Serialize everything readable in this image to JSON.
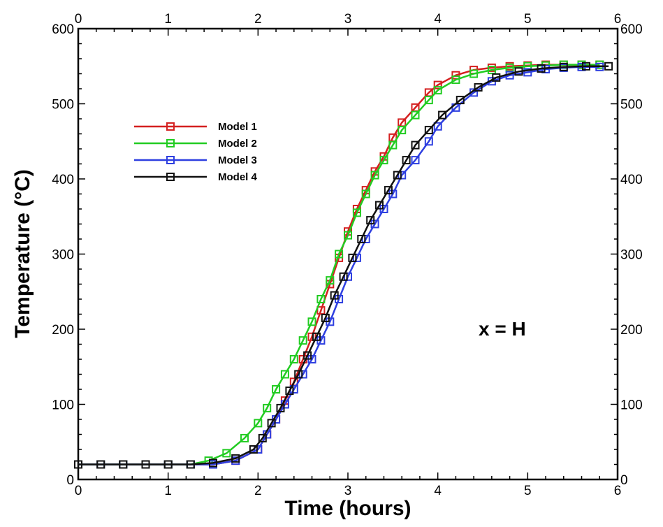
{
  "chart_data": {
    "type": "line",
    "title": "",
    "xlabel": "Time (hours)",
    "ylabel": "Temperature (°C)",
    "xlim": [
      0,
      6
    ],
    "ylim": [
      0,
      600
    ],
    "x_ticks": [
      "0",
      "1",
      "2",
      "3",
      "4",
      "5",
      "6"
    ],
    "y_ticks": [
      "0",
      "100",
      "200",
      "300",
      "400",
      "500",
      "600"
    ],
    "grid": false,
    "legend_position": "upper-left",
    "annotation": "x = H",
    "marker": "square-open",
    "series": [
      {
        "name": "Model 1",
        "color": "#d42020",
        "x": [
          0,
          0.25,
          0.5,
          0.75,
          1.0,
          1.25,
          1.5,
          1.75,
          2.0,
          2.1,
          2.2,
          2.3,
          2.4,
          2.5,
          2.6,
          2.7,
          2.8,
          2.9,
          3.0,
          3.1,
          3.2,
          3.3,
          3.4,
          3.5,
          3.6,
          3.75,
          3.9,
          4.0,
          4.2,
          4.4,
          4.6,
          4.8,
          5.0,
          5.2,
          5.4,
          5.6,
          5.8
        ],
        "y": [
          20,
          20,
          20,
          20,
          20,
          20,
          20,
          25,
          40,
          60,
          80,
          105,
          130,
          160,
          190,
          225,
          260,
          295,
          330,
          360,
          385,
          410,
          430,
          455,
          475,
          495,
          515,
          525,
          538,
          545,
          548,
          550,
          551,
          552,
          552,
          552,
          552
        ]
      },
      {
        "name": "Model 2",
        "color": "#22cc22",
        "x": [
          0,
          0.25,
          0.5,
          0.75,
          1.0,
          1.25,
          1.45,
          1.65,
          1.85,
          2.0,
          2.1,
          2.2,
          2.3,
          2.4,
          2.5,
          2.6,
          2.7,
          2.8,
          2.9,
          3.0,
          3.1,
          3.2,
          3.3,
          3.4,
          3.5,
          3.6,
          3.75,
          3.9,
          4.0,
          4.2,
          4.4,
          4.6,
          4.8,
          5.0,
          5.2,
          5.4,
          5.6,
          5.8
        ],
        "y": [
          20,
          20,
          20,
          20,
          20,
          20,
          25,
          35,
          55,
          75,
          95,
          120,
          140,
          160,
          185,
          210,
          240,
          265,
          300,
          325,
          355,
          380,
          405,
          425,
          445,
          465,
          485,
          505,
          518,
          532,
          540,
          545,
          548,
          550,
          551,
          552,
          552,
          552
        ]
      },
      {
        "name": "Model 3",
        "color": "#2e3fe0",
        "x": [
          0,
          0.25,
          0.5,
          0.75,
          1.0,
          1.25,
          1.5,
          1.75,
          2.0,
          2.1,
          2.2,
          2.3,
          2.4,
          2.5,
          2.6,
          2.7,
          2.8,
          2.9,
          3.0,
          3.1,
          3.2,
          3.3,
          3.4,
          3.5,
          3.6,
          3.75,
          3.9,
          4.0,
          4.2,
          4.4,
          4.6,
          4.8,
          5.0,
          5.2,
          5.4,
          5.6,
          5.8
        ],
        "y": [
          20,
          20,
          20,
          20,
          20,
          20,
          20,
          25,
          40,
          60,
          80,
          100,
          120,
          140,
          160,
          185,
          210,
          240,
          270,
          295,
          320,
          340,
          360,
          380,
          405,
          425,
          450,
          470,
          495,
          515,
          530,
          538,
          542,
          546,
          548,
          549,
          549
        ]
      },
      {
        "name": "Model 4",
        "color": "#111111",
        "x": [
          0,
          0.25,
          0.5,
          0.75,
          1.0,
          1.25,
          1.5,
          1.75,
          1.95,
          2.05,
          2.15,
          2.25,
          2.35,
          2.45,
          2.55,
          2.65,
          2.75,
          2.85,
          2.95,
          3.05,
          3.15,
          3.25,
          3.35,
          3.45,
          3.55,
          3.65,
          3.75,
          3.9,
          4.05,
          4.25,
          4.45,
          4.65,
          4.9,
          5.15,
          5.4,
          5.65,
          5.9
        ],
        "y": [
          20,
          20,
          20,
          20,
          20,
          20,
          22,
          28,
          40,
          55,
          75,
          95,
          118,
          140,
          165,
          190,
          215,
          245,
          270,
          295,
          320,
          345,
          365,
          385,
          405,
          425,
          445,
          465,
          485,
          505,
          522,
          535,
          543,
          547,
          549,
          550,
          550
        ]
      }
    ]
  }
}
